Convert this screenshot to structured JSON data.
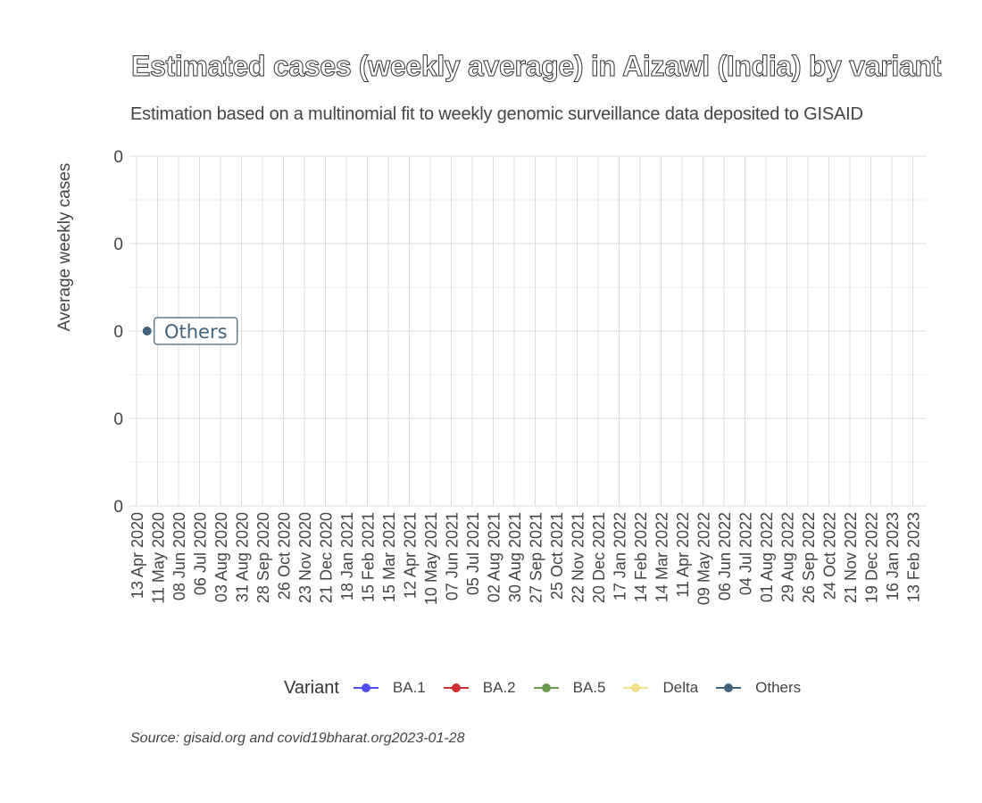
{
  "chart_data": {
    "type": "line",
    "title": "Estimated cases (weekly average) in Aizawl (India) by variant",
    "subtitle": "Estimation based on a multinomial fit to weekly genomic surveillance data deposited to GISAID",
    "ylabel": "Average weekly cases",
    "xlabel": "",
    "y_ticks": [
      "0",
      "0",
      "0",
      "0",
      "0"
    ],
    "x_ticks": [
      "13 Apr 2020",
      "11 May 2020",
      "08 Jun 2020",
      "06 Jul 2020",
      "03 Aug 2020",
      "31 Aug 2020",
      "28 Sep 2020",
      "26 Oct 2020",
      "23 Nov 2020",
      "21 Dec 2020",
      "18 Jan 2021",
      "15 Feb 2021",
      "15 Mar 2021",
      "12 Apr 2021",
      "10 May 2021",
      "07 Jun 2021",
      "05 Jul 2021",
      "02 Aug 2021",
      "30 Aug 2021",
      "27 Sep 2021",
      "25 Oct 2021",
      "22 Nov 2021",
      "20 Dec 2021",
      "17 Jan 2022",
      "14 Feb 2022",
      "14 Mar 2022",
      "11 Apr 2022",
      "09 May 2022",
      "06 Jun 2022",
      "04 Jul 2022",
      "01 Aug 2022",
      "29 Aug 2022",
      "26 Sep 2022",
      "24 Oct 2022",
      "21 Nov 2022",
      "19 Dec 2022",
      "16 Jan 2023",
      "13 Feb 2023"
    ],
    "grid": true,
    "legend_position": "bottom",
    "legend_title": "Variant",
    "series": [
      {
        "name": "BA.1",
        "color": "#5050f0",
        "points": []
      },
      {
        "name": "BA.2",
        "color": "#d03030",
        "points": []
      },
      {
        "name": "BA.5",
        "color": "#6e9a50",
        "points": []
      },
      {
        "name": "Delta",
        "color": "#f0e08a",
        "points": []
      },
      {
        "name": "Others",
        "color": "#43627c",
        "points": [
          {
            "x": "27 Apr 2020",
            "y": 0
          }
        ],
        "label": "Others"
      }
    ],
    "caption": "Source: gisaid.org and covid19bharat.org2023-01-28"
  }
}
